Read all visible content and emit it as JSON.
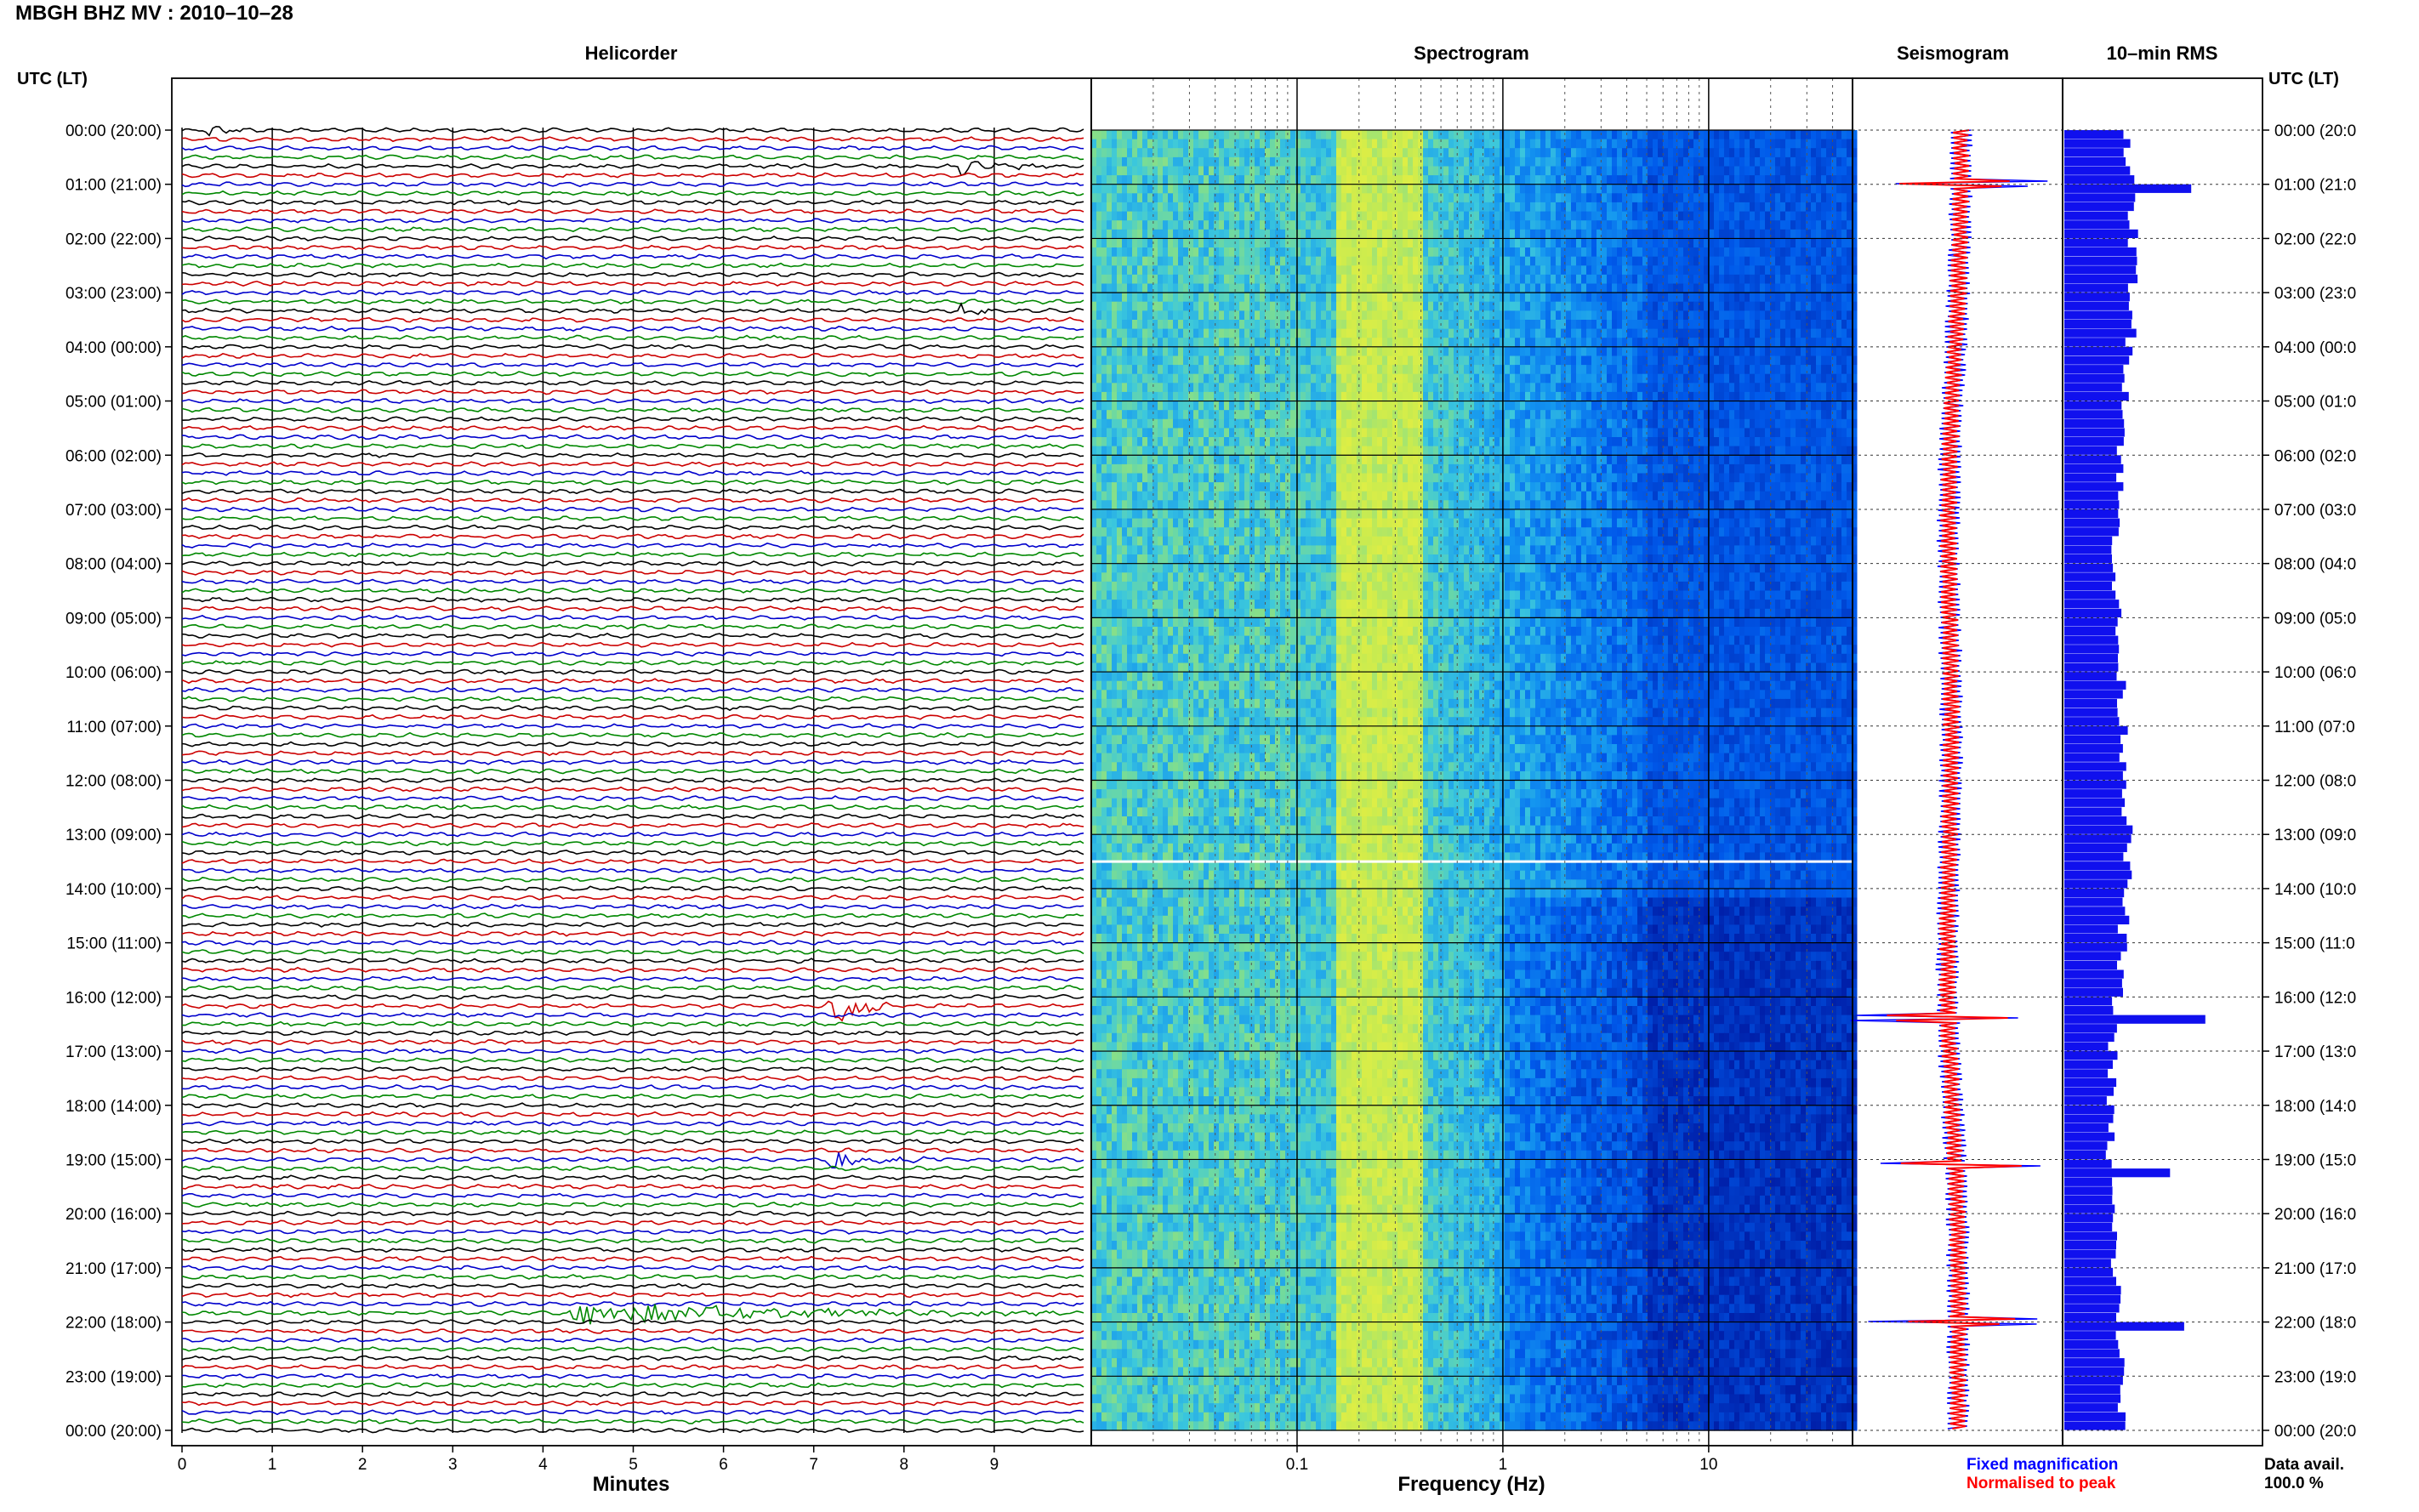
{
  "title": "MBGH BHZ MV : 2010–10–28",
  "panels": {
    "helicorder": "Helicorder",
    "spectrogram": "Spectrogram",
    "seismogram": "Seismogram",
    "rms": "10–min RMS"
  },
  "utc_label_left": "UTC (LT)",
  "utc_label_right": "UTC (LT)",
  "legend": {
    "fixed": "Fixed magnification",
    "fixed_color": "#0000ff",
    "normalised": "Normalised to peak",
    "normalised_color": "#ff0000"
  },
  "data_avail": {
    "label": "Data avail.",
    "value": "100.0 %"
  },
  "chart_data": {
    "type": "heatmap",
    "time_labels": [
      "00:00 (20:00)",
      "01:00 (21:00)",
      "02:00 (22:00)",
      "03:00 (23:00)",
      "04:00 (00:00)",
      "05:00 (01:00)",
      "06:00 (02:00)",
      "07:00 (03:00)",
      "08:00 (04:00)",
      "09:00 (05:00)",
      "10:00 (06:00)",
      "11:00 (07:00)",
      "12:00 (08:00)",
      "13:00 (09:00)",
      "14:00 (10:00)",
      "15:00 (11:00)",
      "16:00 (12:00)",
      "17:00 (13:00)",
      "18:00 (14:00)",
      "19:00 (15:00)",
      "20:00 (16:00)",
      "21:00 (17:00)",
      "22:00 (18:00)",
      "23:00 (19:00)",
      "00:00 (20:00)"
    ],
    "time_labels_right": [
      "00:00 (20:0",
      "01:00 (21:0",
      "02:00 (22:0",
      "03:00 (23:0",
      "04:00 (00:0",
      "05:00 (01:0",
      "06:00 (02:0",
      "07:00 (03:0",
      "08:00 (04:0",
      "09:00 (05:0",
      "10:00 (06:0",
      "11:00 (07:0",
      "12:00 (08:0",
      "13:00 (09:0",
      "14:00 (10:0",
      "15:00 (11:0",
      "16:00 (12:0",
      "17:00 (13:0",
      "18:00 (14:0",
      "19:00 (15:0",
      "20:00 (16:0",
      "21:00 (17:0",
      "22:00 (18:0",
      "23:00 (19:0",
      "00:00 (20:0"
    ],
    "helicorder": {
      "xlabel": "Minutes",
      "xticks": [
        "0",
        "1",
        "2",
        "3",
        "4",
        "5",
        "6",
        "7",
        "8",
        "9"
      ],
      "xlim": [
        0,
        10
      ],
      "trace_colors": [
        "#000000",
        "#cc0000",
        "#0000cc",
        "#008800"
      ],
      "traces": 144,
      "events": [
        {
          "hour": 0.67,
          "minute": 8.6,
          "duration_min": 1.3,
          "amp": 1.0
        },
        {
          "hour": 3.33,
          "minute": 8.6,
          "duration_min": 0.5,
          "amp": 1.2
        },
        {
          "hour": 16.17,
          "minute": 7.15,
          "duration_min": 0.8,
          "amp": 3.2
        },
        {
          "hour": 19.0,
          "minute": 7.15,
          "duration_min": 1.4,
          "amp": 1.5
        },
        {
          "hour": 21.83,
          "minute": 4.3,
          "duration_min": 5.5,
          "amp": 1.6
        },
        {
          "hour": 0.0,
          "minute": 0.3,
          "duration_min": 0.5,
          "amp": 0.9
        }
      ]
    },
    "spectrogram": {
      "xlabel": "Frequency (Hz)",
      "xscale": "log",
      "xticks": [
        "0.1",
        "1",
        "10"
      ],
      "xlim": [
        0.01,
        50
      ],
      "bright_band_hz": [
        0.15,
        0.35
      ]
    },
    "seismogram": {
      "series": [
        "Fixed magnification",
        "Normalised to peak"
      ],
      "spikes_hour": [
        1.0,
        16.4,
        19.1,
        22.0
      ]
    },
    "rms": {
      "bins": 144,
      "spikes": [
        {
          "hour": 1.0,
          "value": 0.9
        },
        {
          "hour": 16.4,
          "value": 1.0
        },
        {
          "hour": 19.1,
          "value": 0.75
        },
        {
          "hour": 22.0,
          "value": 0.85
        }
      ],
      "baseline": [
        0.45,
        0.35
      ]
    }
  }
}
